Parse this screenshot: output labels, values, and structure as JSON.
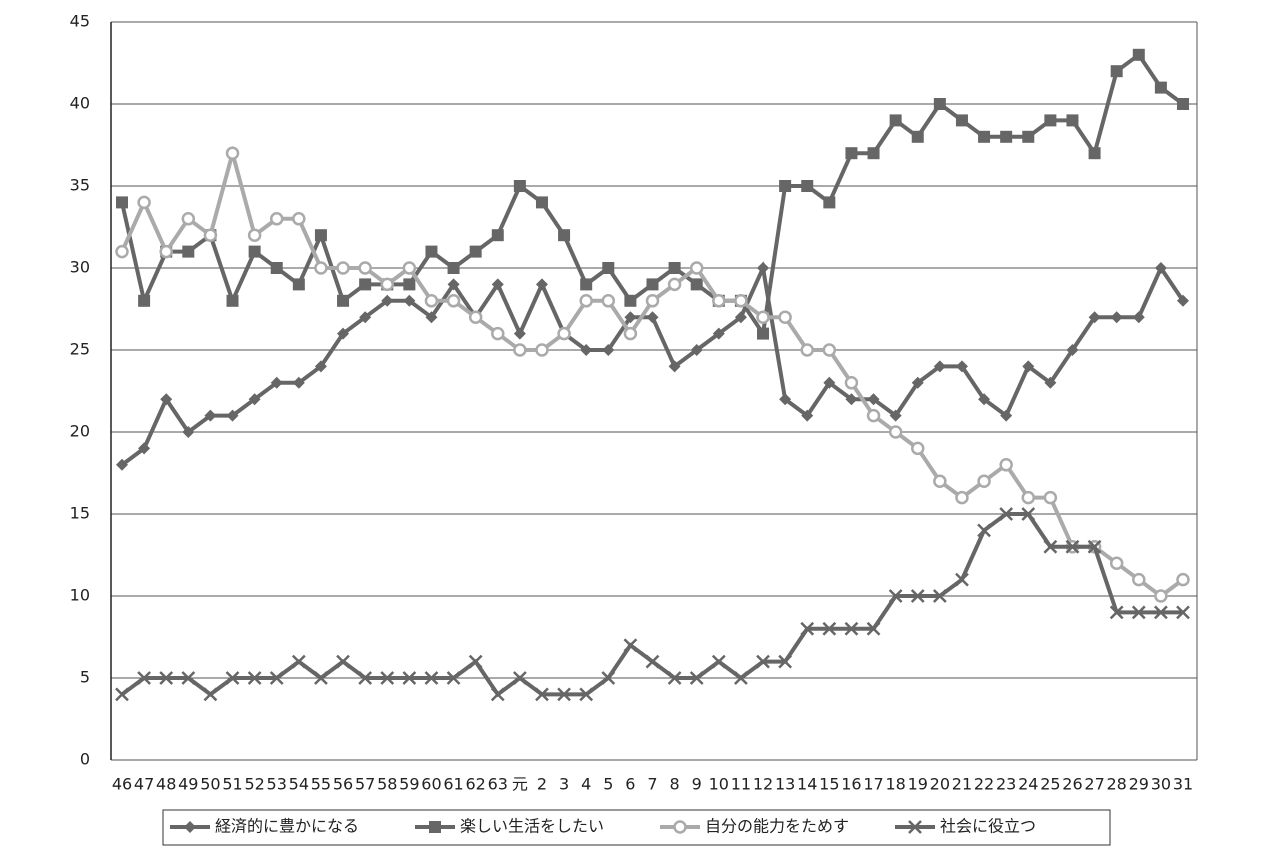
{
  "chart_data": {
    "type": "line",
    "categories": [
      "46",
      "47",
      "48",
      "49",
      "50",
      "51",
      "52",
      "53",
      "54",
      "55",
      "56",
      "57",
      "58",
      "59",
      "60",
      "61",
      "62",
      "63",
      "元",
      "2",
      "3",
      "4",
      "5",
      "6",
      "7",
      "8",
      "9",
      "10",
      "11",
      "12",
      "13",
      "14",
      "15",
      "16",
      "17",
      "18",
      "19",
      "20",
      "21",
      "22",
      "23",
      "24",
      "25",
      "26",
      "27",
      "28",
      "29",
      "30",
      "31"
    ],
    "series": [
      {
        "name": "経済的に豊かになる",
        "color": "#666666",
        "marker": "diamond",
        "values": [
          18,
          19,
          22,
          20,
          21,
          21,
          22,
          23,
          23,
          24,
          26,
          27,
          28,
          28,
          27,
          29,
          27,
          29,
          26,
          29,
          26,
          25,
          25,
          27,
          27,
          24,
          25,
          26,
          27,
          30,
          22,
          21,
          23,
          22,
          22,
          21,
          23,
          24,
          24,
          22,
          21,
          24,
          23,
          25,
          27,
          27,
          27,
          30,
          28
        ]
      },
      {
        "name": "楽しい生活をしたい",
        "color": "#666666",
        "marker": "square",
        "values": [
          34,
          28,
          31,
          31,
          32,
          28,
          31,
          30,
          29,
          32,
          28,
          29,
          29,
          29,
          31,
          30,
          31,
          32,
          35,
          34,
          32,
          29,
          30,
          28,
          29,
          30,
          29,
          28,
          28,
          26,
          35,
          35,
          34,
          37,
          37,
          39,
          38,
          40,
          39,
          38,
          38,
          38,
          39,
          39,
          37,
          42,
          43,
          41,
          40
        ]
      },
      {
        "name": "自分の能力をためす",
        "color": "#aaaaaa",
        "marker": "circle",
        "values": [
          31,
          34,
          31,
          33,
          32,
          37,
          32,
          33,
          33,
          30,
          30,
          30,
          29,
          30,
          28,
          28,
          27,
          26,
          25,
          25,
          26,
          28,
          28,
          26,
          28,
          29,
          30,
          28,
          28,
          27,
          27,
          25,
          25,
          23,
          21,
          20,
          19,
          17,
          16,
          17,
          18,
          16,
          16,
          13,
          13,
          12,
          11,
          10,
          11
        ]
      },
      {
        "name": "社会に役立つ",
        "color": "#666666",
        "marker": "x",
        "values": [
          4,
          5,
          5,
          5,
          4,
          5,
          5,
          5,
          6,
          5,
          6,
          5,
          5,
          5,
          5,
          5,
          6,
          4,
          5,
          4,
          4,
          4,
          5,
          7,
          6,
          5,
          5,
          6,
          5,
          6,
          6,
          8,
          8,
          8,
          8,
          10,
          10,
          10,
          11,
          14,
          15,
          15,
          13,
          13,
          13,
          9,
          9,
          9,
          9
        ]
      }
    ],
    "ylim": [
      0,
      45
    ],
    "yticks": [
      0,
      5,
      10,
      15,
      20,
      25,
      30,
      35,
      40,
      45
    ],
    "grid": true,
    "legend": "bottom"
  }
}
